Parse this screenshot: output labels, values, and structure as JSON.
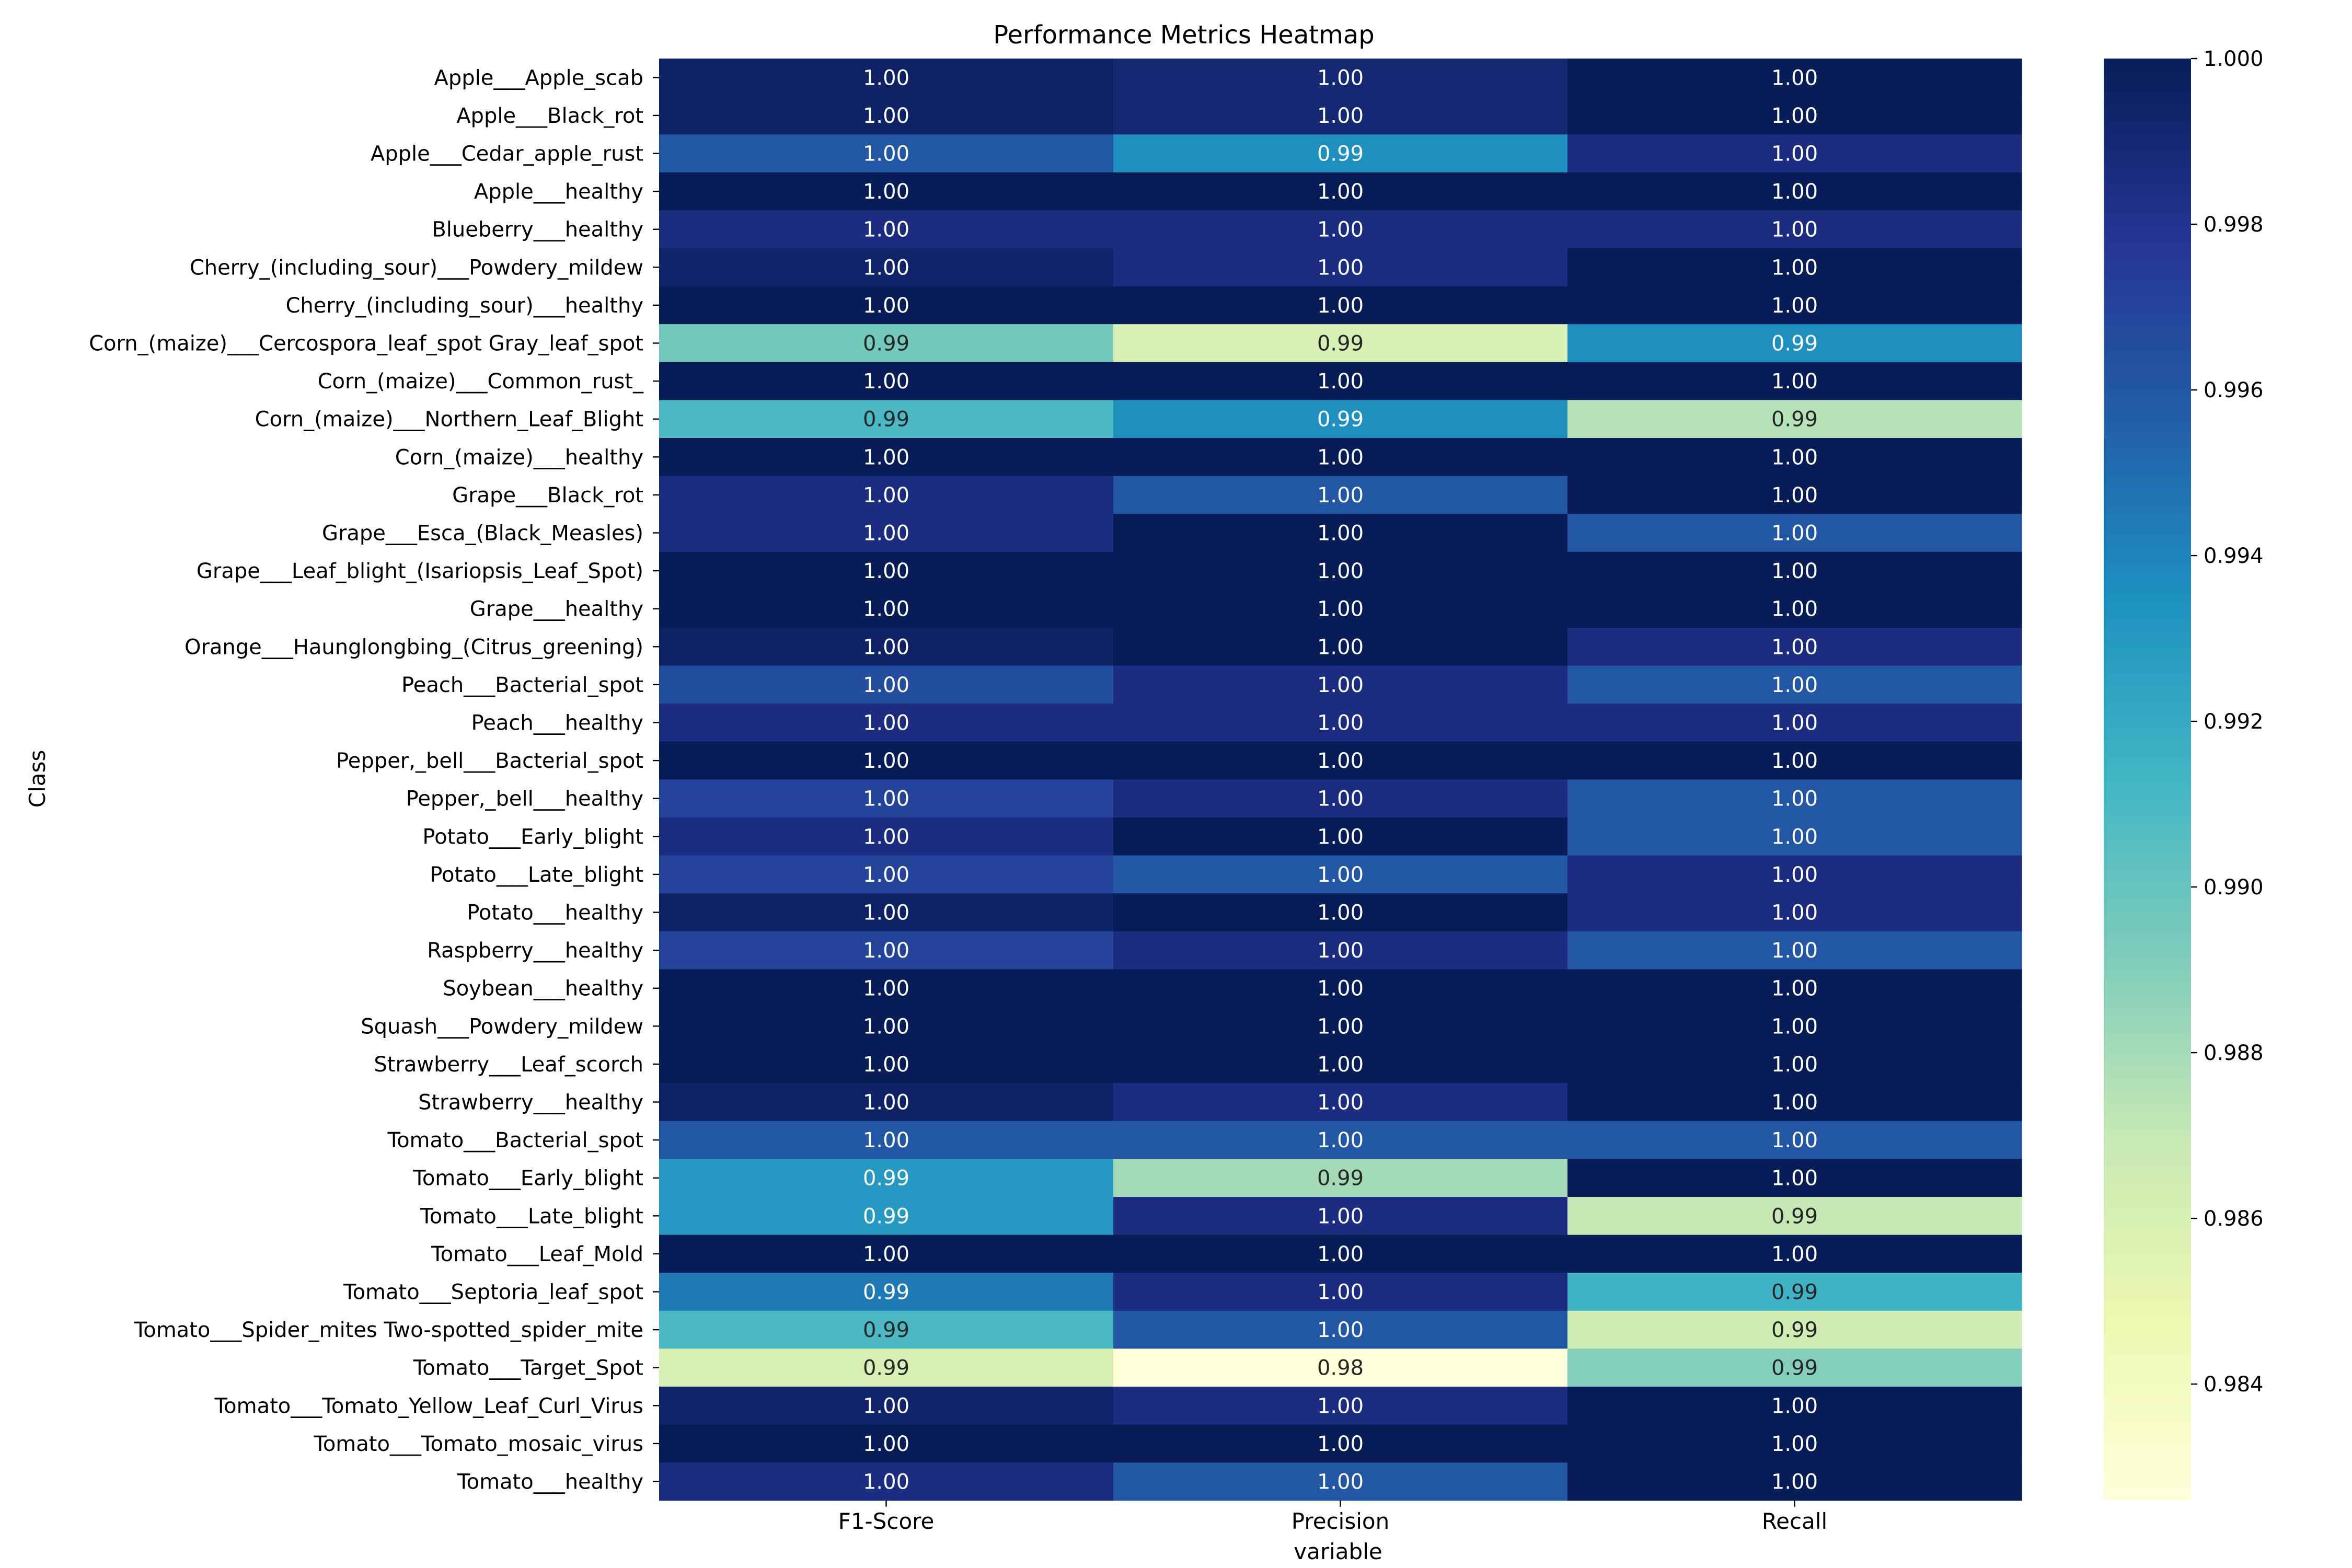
{
  "chart_data": {
    "type": "heatmap",
    "title": "Performance Metrics Heatmap",
    "xlabel": "variable",
    "ylabel": "Class",
    "columns": [
      "F1-Score",
      "Precision",
      "Recall"
    ],
    "rows": [
      "Apple___Apple_scab",
      "Apple___Black_rot",
      "Apple___Cedar_apple_rust",
      "Apple___healthy",
      "Blueberry___healthy",
      "Cherry_(including_sour)___Powdery_mildew",
      "Cherry_(including_sour)___healthy",
      "Corn_(maize)___Cercospora_leaf_spot Gray_leaf_spot",
      "Corn_(maize)___Common_rust_",
      "Corn_(maize)___Northern_Leaf_Blight",
      "Corn_(maize)___healthy",
      "Grape___Black_rot",
      "Grape___Esca_(Black_Measles)",
      "Grape___Leaf_blight_(Isariopsis_Leaf_Spot)",
      "Grape___healthy",
      "Orange___Haunglongbing_(Citrus_greening)",
      "Peach___Bacterial_spot",
      "Peach___healthy",
      "Pepper,_bell___Bacterial_spot",
      "Pepper,_bell___healthy",
      "Potato___Early_blight",
      "Potato___Late_blight",
      "Potato___healthy",
      "Raspberry___healthy",
      "Soybean___healthy",
      "Squash___Powdery_mildew",
      "Strawberry___Leaf_scorch",
      "Strawberry___healthy",
      "Tomato___Bacterial_spot",
      "Tomato___Early_blight",
      "Tomato___Late_blight",
      "Tomato___Leaf_Mold",
      "Tomato___Septoria_leaf_spot",
      "Tomato___Spider_mites Two-spotted_spider_mite",
      "Tomato___Target_Spot",
      "Tomato___Tomato_Yellow_Leaf_Curl_Virus",
      "Tomato___Tomato_mosaic_virus",
      "Tomato___healthy"
    ],
    "values": [
      [
        0.9995,
        0.999,
        1.0
      ],
      [
        0.9995,
        0.999,
        1.0
      ],
      [
        0.996,
        0.9935,
        0.9985
      ],
      [
        1.0,
        1.0,
        1.0
      ],
      [
        0.9985,
        0.9985,
        0.9985
      ],
      [
        0.9993,
        0.9985,
        1.0
      ],
      [
        1.0,
        1.0,
        1.0
      ],
      [
        0.9895,
        0.986,
        0.9935
      ],
      [
        1.0,
        1.0,
        1.0
      ],
      [
        0.991,
        0.9935,
        0.9875
      ],
      [
        1.0,
        1.0,
        1.0
      ],
      [
        0.9985,
        0.996,
        1.0
      ],
      [
        0.9985,
        1.0,
        0.996
      ],
      [
        1.0,
        1.0,
        1.0
      ],
      [
        1.0,
        1.0,
        1.0
      ],
      [
        0.9995,
        1.0,
        0.9985
      ],
      [
        0.9965,
        0.9985,
        0.996
      ],
      [
        0.9985,
        0.9985,
        0.9985
      ],
      [
        1.0,
        1.0,
        1.0
      ],
      [
        0.997,
        0.9985,
        0.996
      ],
      [
        0.9985,
        1.0,
        0.996
      ],
      [
        0.997,
        0.996,
        0.9985
      ],
      [
        0.9995,
        1.0,
        0.9985
      ],
      [
        0.997,
        0.9985,
        0.996
      ],
      [
        1.0,
        1.0,
        1.0
      ],
      [
        1.0,
        1.0,
        1.0
      ],
      [
        1.0,
        1.0,
        1.0
      ],
      [
        0.9995,
        0.9985,
        1.0
      ],
      [
        0.996,
        0.996,
        0.996
      ],
      [
        0.993,
        0.988,
        1.0
      ],
      [
        0.993,
        0.9985,
        0.987
      ],
      [
        1.0,
        1.0,
        1.0
      ],
      [
        0.9945,
        0.9985,
        0.9915
      ],
      [
        0.991,
        0.996,
        0.9865
      ],
      [
        0.986,
        0.9826,
        0.989
      ],
      [
        0.9993,
        0.9985,
        1.0
      ],
      [
        1.0,
        1.0,
        1.0
      ],
      [
        0.9985,
        0.996,
        1.0
      ]
    ],
    "annotations": [
      [
        "1.00",
        "1.00",
        "1.00"
      ],
      [
        "1.00",
        "1.00",
        "1.00"
      ],
      [
        "1.00",
        "0.99",
        "1.00"
      ],
      [
        "1.00",
        "1.00",
        "1.00"
      ],
      [
        "1.00",
        "1.00",
        "1.00"
      ],
      [
        "1.00",
        "1.00",
        "1.00"
      ],
      [
        "1.00",
        "1.00",
        "1.00"
      ],
      [
        "0.99",
        "0.99",
        "0.99"
      ],
      [
        "1.00",
        "1.00",
        "1.00"
      ],
      [
        "0.99",
        "0.99",
        "0.99"
      ],
      [
        "1.00",
        "1.00",
        "1.00"
      ],
      [
        "1.00",
        "1.00",
        "1.00"
      ],
      [
        "1.00",
        "1.00",
        "1.00"
      ],
      [
        "1.00",
        "1.00",
        "1.00"
      ],
      [
        "1.00",
        "1.00",
        "1.00"
      ],
      [
        "1.00",
        "1.00",
        "1.00"
      ],
      [
        "1.00",
        "1.00",
        "1.00"
      ],
      [
        "1.00",
        "1.00",
        "1.00"
      ],
      [
        "1.00",
        "1.00",
        "1.00"
      ],
      [
        "1.00",
        "1.00",
        "1.00"
      ],
      [
        "1.00",
        "1.00",
        "1.00"
      ],
      [
        "1.00",
        "1.00",
        "1.00"
      ],
      [
        "1.00",
        "1.00",
        "1.00"
      ],
      [
        "1.00",
        "1.00",
        "1.00"
      ],
      [
        "1.00",
        "1.00",
        "1.00"
      ],
      [
        "1.00",
        "1.00",
        "1.00"
      ],
      [
        "1.00",
        "1.00",
        "1.00"
      ],
      [
        "1.00",
        "1.00",
        "1.00"
      ],
      [
        "1.00",
        "1.00",
        "1.00"
      ],
      [
        "0.99",
        "0.99",
        "1.00"
      ],
      [
        "0.99",
        "1.00",
        "0.99"
      ],
      [
        "1.00",
        "1.00",
        "1.00"
      ],
      [
        "0.99",
        "1.00",
        "0.99"
      ],
      [
        "0.99",
        "1.00",
        "0.99"
      ],
      [
        "0.99",
        "0.98",
        "0.99"
      ],
      [
        "1.00",
        "1.00",
        "1.00"
      ],
      [
        "1.00",
        "1.00",
        "1.00"
      ],
      [
        "1.00",
        "1.00",
        "1.00"
      ]
    ],
    "colorbar": {
      "colormap": "YlGnBu",
      "range": [
        0.9826,
        1.0
      ],
      "ticks": [
        0.984,
        0.986,
        0.988,
        0.99,
        0.992,
        0.994,
        0.996,
        0.998,
        1.0
      ],
      "tick_labels": [
        "0.984",
        "0.986",
        "0.988",
        "0.990",
        "0.992",
        "0.994",
        "0.996",
        "0.998",
        "1.000"
      ]
    },
    "colormap_stops": [
      "#ffffd9",
      "#edf8b1",
      "#c7e9b4",
      "#7fcdbb",
      "#41b6c4",
      "#1d91c0",
      "#225ea8",
      "#253494",
      "#081d58"
    ],
    "legend": "colorbar-right",
    "grid": false
  }
}
